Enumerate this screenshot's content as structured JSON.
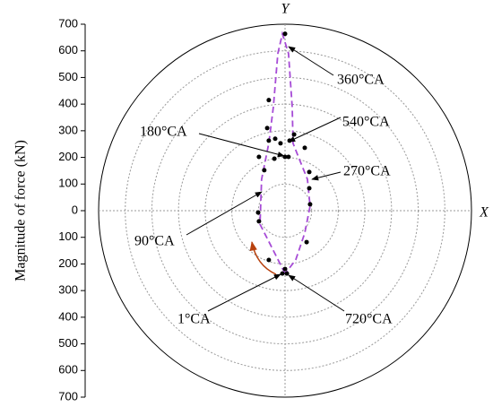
{
  "chart_data": {
    "type": "scatter",
    "y_label": "Magnitude of force (kN)",
    "x_axis_name": "X",
    "y_axis_name": "Y",
    "xlim": [
      -700,
      700
    ],
    "ylim": [
      -700,
      700
    ],
    "yticks": [
      700,
      600,
      500,
      400,
      300,
      200,
      100,
      0,
      {
        "value": -100,
        "label": "100"
      },
      {
        "value": -200,
        "label": "200"
      },
      {
        "value": -300,
        "label": "300"
      },
      {
        "value": -400,
        "label": "400"
      },
      {
        "value": -500,
        "label": "500"
      },
      {
        "value": -600,
        "label": "600"
      },
      {
        "value": -700,
        "label": "700"
      }
    ],
    "grid": true,
    "points": {
      "color": "#000000",
      "x": [
        0,
        -61,
        -67,
        -61,
        -37,
        -17,
        17,
        34,
        0,
        13,
        -40,
        -98,
        -78,
        74,
        91,
        91,
        94,
        81,
        -101,
        -98,
        -61,
        -10,
        7,
        0
      ],
      "y": [
        664,
        415,
        310,
        263,
        270,
        253,
        263,
        286,
        202,
        202,
        195,
        202,
        152,
        236,
        145,
        84,
        24,
        -118,
        -7,
        -40,
        -185,
        -236,
        -236,
        -219
      ]
    },
    "curve": {
      "color": "#a64bd6",
      "x": [
        0,
        -94,
        -88,
        -61,
        -44,
        -27,
        -10,
        13,
        27,
        30,
        57,
        84,
        94,
        74,
        40,
        0
      ],
      "y": [
        -236,
        -51,
        118,
        253,
        388,
        590,
        664,
        590,
        388,
        253,
        185,
        118,
        17,
        -84,
        -185,
        -236
      ]
    },
    "annotations": [
      "360°CA",
      "540°CA",
      "180°CA",
      "270°CA",
      "90°CA",
      "1°CA",
      "720°CA"
    ]
  }
}
